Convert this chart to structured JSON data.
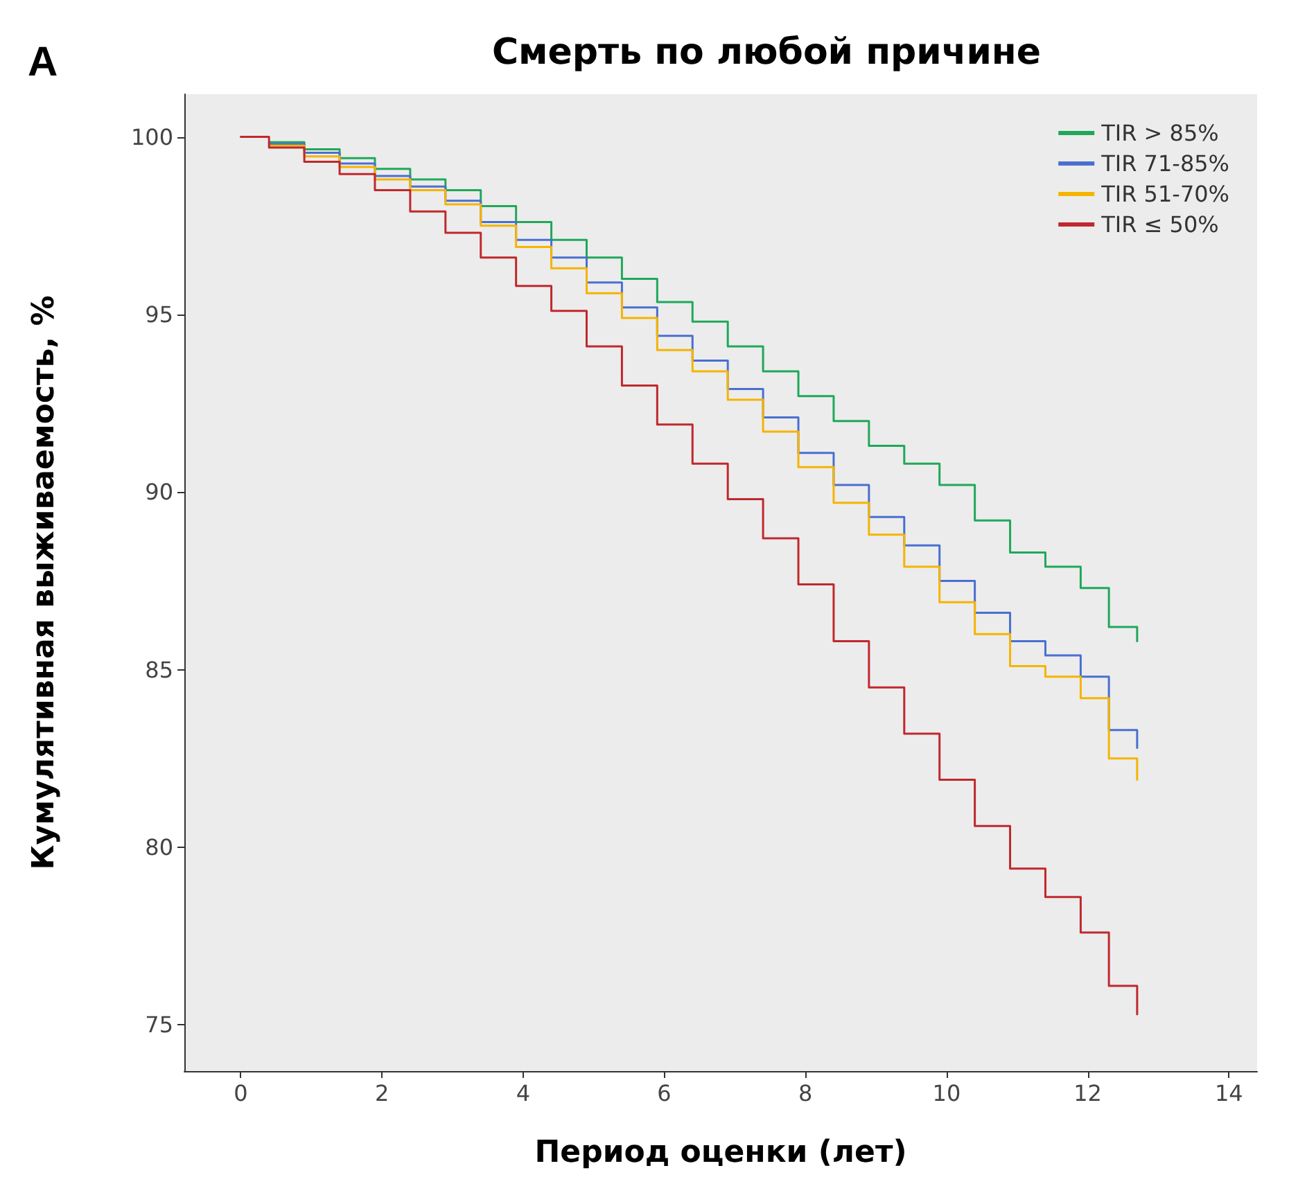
{
  "chart_data": {
    "type": "step",
    "title": "Смерть по любой причине",
    "xlabel": "Период оценки (лет)",
    "ylabel": "Кумулятивная выживаемость, %",
    "annotations": [
      "A"
    ],
    "xlim": [
      -0.8,
      14.4
    ],
    "xticks": [
      0,
      2,
      4,
      6,
      8,
      10,
      12,
      14
    ],
    "ylim": [
      73.7,
      101.2
    ],
    "yticks": [
      75,
      80,
      85,
      90,
      95,
      100
    ],
    "grid": false,
    "legend": "top right",
    "marker": "none",
    "line_style": "solid",
    "series": [
      {
        "name": "TIR > 85%",
        "color": "#1fa85a",
        "x": [
          0.4,
          0.9,
          1.4,
          1.9,
          2.4,
          2.9,
          3.4,
          3.9,
          4.4,
          4.9,
          5.4,
          5.9,
          6.4,
          6.9,
          7.4,
          7.9,
          8.4,
          8.9,
          9.4,
          9.9,
          10.4,
          10.9,
          11.4,
          11.9,
          12.3,
          12.7
        ],
        "values": [
          99.85,
          99.65,
          99.4,
          99.1,
          98.8,
          98.5,
          98.05,
          97.6,
          97.1,
          96.6,
          96,
          95.35,
          94.8,
          94.1,
          93.4,
          92.7,
          92,
          91.3,
          90.8,
          90.2,
          89.2,
          88.3,
          87.9,
          87.3,
          86.2,
          85.8
        ]
      },
      {
        "name": "TIR 71-85%",
        "color": "#4a6fd0",
        "x": [
          0.4,
          0.9,
          1.4,
          1.9,
          2.4,
          2.9,
          3.4,
          3.9,
          4.4,
          4.9,
          5.4,
          5.9,
          6.4,
          6.9,
          7.4,
          7.9,
          8.4,
          8.9,
          9.4,
          9.9,
          10.4,
          10.9,
          11.4,
          11.9,
          12.3,
          12.7
        ],
        "values": [
          99.8,
          99.55,
          99.25,
          98.9,
          98.6,
          98.2,
          97.6,
          97.1,
          96.6,
          95.9,
          95.2,
          94.4,
          93.7,
          92.9,
          92.1,
          91.1,
          90.2,
          89.3,
          88.5,
          87.5,
          86.6,
          85.8,
          85.4,
          84.8,
          83.3,
          82.8
        ]
      },
      {
        "name": "TIR 51-70%",
        "color": "#f5b400",
        "x": [
          0.4,
          0.9,
          1.4,
          1.9,
          2.4,
          2.9,
          3.4,
          3.9,
          4.4,
          4.9,
          5.4,
          5.9,
          6.4,
          6.9,
          7.4,
          7.9,
          8.4,
          8.9,
          9.4,
          9.9,
          10.4,
          10.9,
          11.4,
          11.9,
          12.3,
          12.7
        ],
        "values": [
          99.75,
          99.45,
          99.15,
          98.8,
          98.5,
          98.1,
          97.5,
          96.9,
          96.3,
          95.6,
          94.9,
          94,
          93.4,
          92.6,
          91.7,
          90.7,
          89.7,
          88.8,
          87.9,
          86.9,
          86,
          85.1,
          84.8,
          84.2,
          82.5,
          81.9
        ]
      },
      {
        "name": "TIR ≤ 50%",
        "color": "#c0282d",
        "x": [
          0,
          0.4,
          0.9,
          1.4,
          1.9,
          2.4,
          2.9,
          3.4,
          3.9,
          4.4,
          4.9,
          5.4,
          5.9,
          6.4,
          6.9,
          7.4,
          7.9,
          8.4,
          8.9,
          9.4,
          9.9,
          10.4,
          10.9,
          11.4,
          11.9,
          12.3,
          12.7
        ],
        "values": [
          100,
          99.7,
          99.3,
          98.95,
          98.5,
          97.9,
          97.3,
          96.6,
          95.8,
          95.1,
          94.1,
          93,
          91.9,
          90.8,
          89.8,
          88.7,
          87.4,
          85.8,
          84.5,
          83.2,
          81.9,
          80.6,
          79.4,
          78.6,
          77.6,
          76.1,
          75.3
        ]
      }
    ]
  }
}
